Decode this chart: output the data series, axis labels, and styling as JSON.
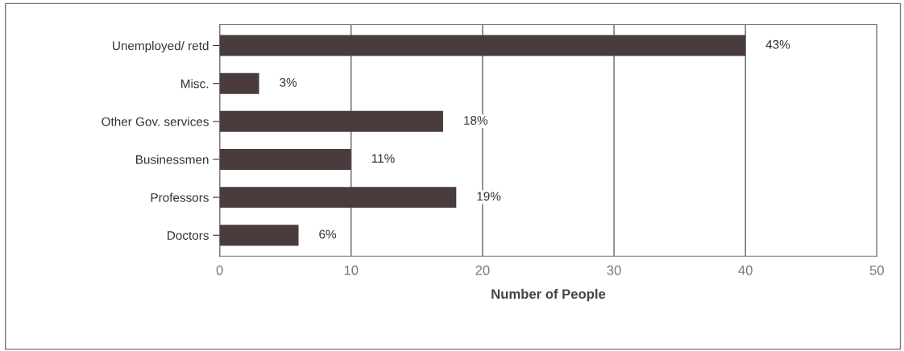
{
  "chart_data": {
    "type": "bar",
    "orientation": "horizontal",
    "categories": [
      "Unemployed/ retd",
      "Misc.",
      "Other Gov. services",
      "Businessmen",
      "Professors",
      "Doctors"
    ],
    "values": [
      40,
      3,
      17,
      10,
      18,
      6
    ],
    "annotations": [
      {
        "text": "43%",
        "x": 40,
        "y": "Unemployed/ retd"
      },
      {
        "text": "3%",
        "x": 3,
        "y": "Misc."
      },
      {
        "text": "18%",
        "x": 17,
        "y": "Other Gov. services"
      },
      {
        "text": "11%",
        "x": 10,
        "y": "Businessmen"
      },
      {
        "text": "19%",
        "x": 18,
        "y": "Professors"
      },
      {
        "text": "6%",
        "x": 6,
        "y": "Doctors"
      }
    ],
    "color": "#4a3c3c",
    "xlabel": "Number of People",
    "xlim": [
      0,
      50
    ],
    "xticks": [
      0,
      10,
      20,
      30,
      40,
      50
    ],
    "grid": "x",
    "legend": false
  }
}
